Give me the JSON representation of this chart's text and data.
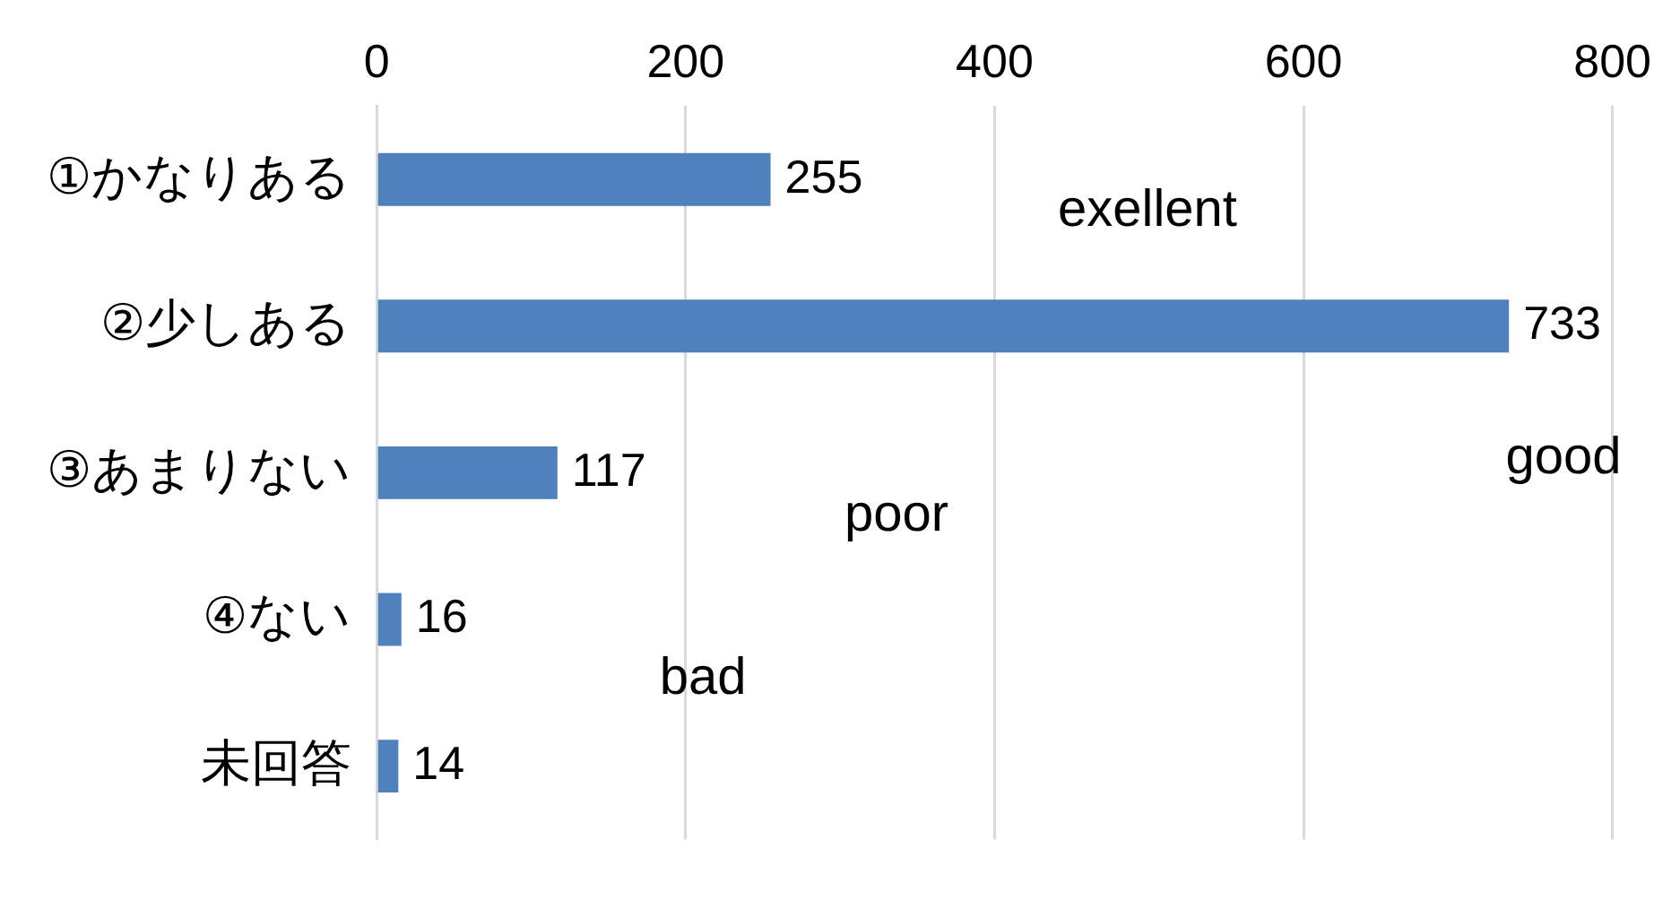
{
  "chart_data": {
    "type": "bar",
    "orientation": "horizontal",
    "categories": [
      "①かなりある",
      "②少しある",
      "③あまりない",
      "④ない",
      "未回答"
    ],
    "values": [
      255,
      733,
      117,
      16,
      14
    ],
    "color": "#4f81bd",
    "xlim": [
      0,
      800
    ],
    "xticks": [
      0,
      200,
      400,
      600,
      800
    ],
    "grid": "x",
    "data_labels": true,
    "legend": false,
    "annotations": [
      "exellent",
      "good",
      "poor",
      "bad"
    ]
  }
}
